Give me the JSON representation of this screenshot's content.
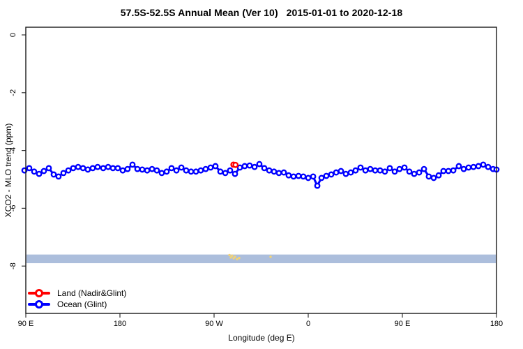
{
  "title": "57.5S-52.5S Annual Mean (Ver 10)   2015-01-01 to 2020-12-18",
  "chart_data": {
    "type": "line",
    "title": "57.5S-52.5S Annual Mean (Ver 10)   2015-01-01 to 2020-12-18",
    "xlabel": "Longitude (deg E)",
    "ylabel": "XCO2 - MLO trend (ppm)",
    "x_axis": {
      "note": "longitude axis wraps eastward: 90E > 180 > 90W > 0 > 90E > 180; positions stored as continuous deg east from 90 to 540",
      "range": [
        88,
        541
      ],
      "ticks": [
        {
          "pos": 90,
          "label": "90 E"
        },
        {
          "pos": 180,
          "label": "180"
        },
        {
          "pos": 270,
          "label": "90 W"
        },
        {
          "pos": 360,
          "label": "0"
        },
        {
          "pos": 450,
          "label": "90 E"
        },
        {
          "pos": 540,
          "label": "180"
        }
      ]
    },
    "y_axis": {
      "range": [
        0.3,
        -9.9
      ],
      "ticks": [
        {
          "value": 0,
          "label": "0"
        },
        {
          "value": -2,
          "label": "-2"
        },
        {
          "value": -4,
          "label": "-4"
        },
        {
          "value": -6,
          "label": "-6"
        },
        {
          "value": -8,
          "label": "-8"
        }
      ],
      "grid": false
    },
    "band": {
      "from_ppm": -7.6,
      "to_ppm": -7.9,
      "color": "#acbedc"
    },
    "series": [
      {
        "name": "Land (Nadir&Glint)",
        "color": "#ff0000",
        "marker": "open-circle",
        "points": [
          [
            288.5,
            -4.49
          ],
          [
            290.5,
            -4.5
          ]
        ]
      },
      {
        "name": "Ocean (Glint)",
        "color": "#0000ff",
        "marker": "open-circle",
        "points": [
          [
            88.7,
            -4.69
          ],
          [
            93.3,
            -4.61
          ],
          [
            98.0,
            -4.73
          ],
          [
            102.7,
            -4.81
          ],
          [
            107.3,
            -4.71
          ],
          [
            112.0,
            -4.61
          ],
          [
            116.7,
            -4.83
          ],
          [
            121.3,
            -4.9
          ],
          [
            126.0,
            -4.78
          ],
          [
            130.7,
            -4.69
          ],
          [
            135.3,
            -4.61
          ],
          [
            140.0,
            -4.57
          ],
          [
            144.7,
            -4.61
          ],
          [
            149.3,
            -4.66
          ],
          [
            154.0,
            -4.61
          ],
          [
            158.7,
            -4.57
          ],
          [
            164.0,
            -4.61
          ],
          [
            168.7,
            -4.57
          ],
          [
            173.3,
            -4.61
          ],
          [
            178.0,
            -4.61
          ],
          [
            182.7,
            -4.69
          ],
          [
            187.3,
            -4.64
          ],
          [
            192.0,
            -4.49
          ],
          [
            196.7,
            -4.64
          ],
          [
            201.3,
            -4.66
          ],
          [
            206.0,
            -4.69
          ],
          [
            210.7,
            -4.64
          ],
          [
            215.3,
            -4.69
          ],
          [
            220.0,
            -4.78
          ],
          [
            224.7,
            -4.73
          ],
          [
            229.3,
            -4.61
          ],
          [
            234.0,
            -4.69
          ],
          [
            238.7,
            -4.59
          ],
          [
            243.3,
            -4.69
          ],
          [
            248.0,
            -4.73
          ],
          [
            252.7,
            -4.73
          ],
          [
            257.3,
            -4.69
          ],
          [
            262.0,
            -4.64
          ],
          [
            266.7,
            -4.59
          ],
          [
            271.3,
            -4.54
          ],
          [
            276.0,
            -4.73
          ],
          [
            280.7,
            -4.78
          ],
          [
            285.3,
            -4.69
          ],
          [
            290.0,
            -4.81
          ],
          [
            294.7,
            -4.59
          ],
          [
            299.3,
            -4.54
          ],
          [
            304.0,
            -4.52
          ],
          [
            308.7,
            -4.57
          ],
          [
            313.3,
            -4.47
          ],
          [
            318.0,
            -4.61
          ],
          [
            322.7,
            -4.69
          ],
          [
            327.3,
            -4.73
          ],
          [
            332.0,
            -4.78
          ],
          [
            336.7,
            -4.76
          ],
          [
            341.3,
            -4.86
          ],
          [
            346.0,
            -4.9
          ],
          [
            350.7,
            -4.88
          ],
          [
            355.3,
            -4.9
          ],
          [
            360.0,
            -4.95
          ],
          [
            364.7,
            -4.9
          ],
          [
            368.7,
            -5.22
          ],
          [
            372.7,
            -4.95
          ],
          [
            377.3,
            -4.88
          ],
          [
            382.0,
            -4.83
          ],
          [
            386.7,
            -4.76
          ],
          [
            391.3,
            -4.71
          ],
          [
            396.0,
            -4.81
          ],
          [
            400.7,
            -4.76
          ],
          [
            405.3,
            -4.69
          ],
          [
            410.0,
            -4.59
          ],
          [
            414.7,
            -4.69
          ],
          [
            419.3,
            -4.64
          ],
          [
            424.0,
            -4.69
          ],
          [
            428.7,
            -4.69
          ],
          [
            433.3,
            -4.73
          ],
          [
            438.0,
            -4.61
          ],
          [
            442.7,
            -4.73
          ],
          [
            447.3,
            -4.64
          ],
          [
            452.0,
            -4.59
          ],
          [
            456.7,
            -4.73
          ],
          [
            461.3,
            -4.81
          ],
          [
            466.0,
            -4.76
          ],
          [
            470.7,
            -4.64
          ],
          [
            475.3,
            -4.9
          ],
          [
            480.0,
            -4.95
          ],
          [
            484.7,
            -4.86
          ],
          [
            489.3,
            -4.71
          ],
          [
            494.0,
            -4.71
          ],
          [
            498.7,
            -4.69
          ],
          [
            504.0,
            -4.54
          ],
          [
            508.7,
            -4.64
          ],
          [
            513.3,
            -4.59
          ],
          [
            518.0,
            -4.57
          ],
          [
            522.7,
            -4.54
          ],
          [
            527.3,
            -4.49
          ],
          [
            532.0,
            -4.57
          ],
          [
            536.7,
            -4.64
          ],
          [
            540.0,
            -4.66
          ]
        ]
      }
    ],
    "extra_marks": {
      "name": "small-yellow-dots",
      "color": "#f2d377",
      "points": [
        [
          284.7,
          -7.62
        ],
        [
          286.0,
          -7.7
        ],
        [
          287.3,
          -7.64
        ],
        [
          288.7,
          -7.73
        ],
        [
          290.0,
          -7.68
        ],
        [
          292.0,
          -7.76
        ],
        [
          294.0,
          -7.72
        ],
        [
          324.0,
          -7.68
        ]
      ]
    },
    "legend_position": "bottom-left-inside"
  },
  "legend": {
    "items": [
      {
        "label": "Land (Nadir&Glint)",
        "color": "#ff0000"
      },
      {
        "label": "Ocean (Glint)",
        "color": "#0000ff"
      }
    ]
  }
}
